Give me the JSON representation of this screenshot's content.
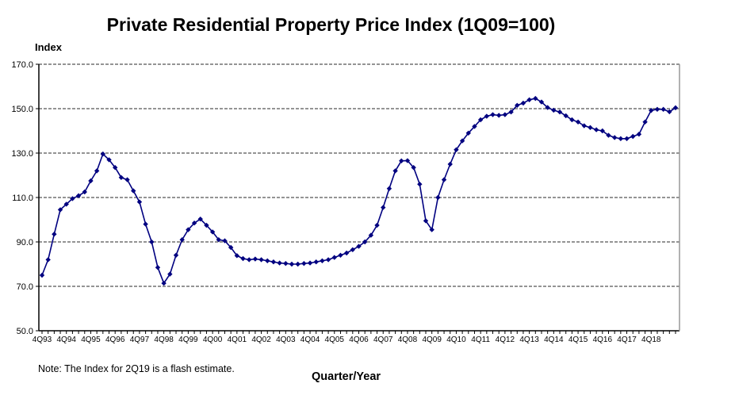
{
  "chart_data": {
    "type": "line",
    "title": "Private Residential Property Price Index (1Q09=100)",
    "xlabel": "Quarter/Year",
    "ylabel": "Index",
    "note": "Note: The Index for 2Q19 is a flash estimate.",
    "ylim": [
      50,
      170
    ],
    "yticks": [
      "50.0",
      "70.0",
      "90.0",
      "110.0",
      "130.0",
      "150.0",
      "170.0"
    ],
    "ytick_values": [
      50,
      70,
      90,
      110,
      130,
      150,
      170
    ],
    "grid": true,
    "grid_style": "dashed horizontal",
    "xtick_labels": [
      "4Q93",
      "4Q94",
      "4Q95",
      "4Q96",
      "4Q97",
      "4Q98",
      "4Q99",
      "4Q00",
      "4Q01",
      "4Q02",
      "4Q03",
      "4Q04",
      "4Q05",
      "4Q06",
      "4Q07",
      "4Q08",
      "4Q09",
      "4Q10",
      "4Q11",
      "4Q12",
      "4Q13",
      "4Q14",
      "4Q15",
      "4Q16",
      "4Q17",
      "4Q18"
    ],
    "x_start": "4Q93",
    "x_end": "2Q19",
    "series": [
      {
        "name": "Private Residential Property Price Index",
        "color": "#000080",
        "marker": "diamond",
        "values": [
          75.0,
          82.0,
          93.5,
          104.5,
          107.0,
          109.5,
          110.8,
          112.5,
          117.5,
          122.0,
          129.6,
          127.0,
          123.5,
          119.0,
          118.0,
          113.0,
          108.0,
          98.0,
          90.0,
          78.5,
          71.4,
          75.5,
          84.0,
          91.0,
          95.5,
          98.5,
          100.3,
          97.5,
          94.5,
          91.0,
          90.5,
          87.5,
          83.8,
          82.5,
          82.0,
          82.3,
          82.0,
          81.5,
          81.0,
          80.5,
          80.3,
          80.0,
          80.0,
          80.3,
          80.5,
          81.0,
          81.5,
          82.0,
          83.0,
          84.0,
          85.0,
          86.5,
          88.0,
          90.0,
          93.0,
          97.5,
          105.5,
          114.0,
          122.0,
          126.5,
          126.6,
          123.5,
          116.0,
          99.5,
          95.5,
          110.0,
          118.0,
          125.0,
          131.5,
          135.5,
          139.0,
          142.0,
          145.0,
          146.6,
          147.3,
          147.0,
          147.3,
          148.5,
          151.5,
          152.5,
          154.0,
          154.6,
          153.0,
          150.5,
          149.3,
          148.5,
          146.8,
          145.0,
          144.0,
          142.3,
          141.5,
          140.5,
          140.0,
          138.0,
          137.0,
          136.5,
          136.5,
          137.5,
          138.5,
          144.0,
          149.2,
          149.7,
          149.7,
          148.6,
          150.4
        ]
      }
    ]
  }
}
